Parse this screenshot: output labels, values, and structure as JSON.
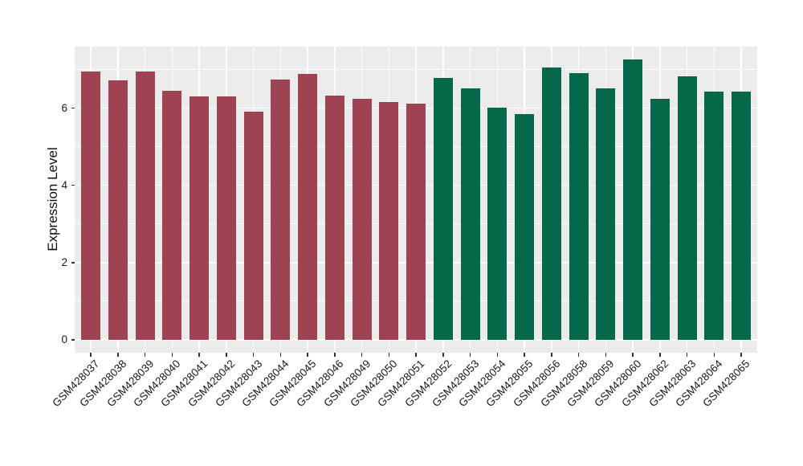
{
  "chart_data": {
    "type": "bar",
    "title": "",
    "xlabel": "",
    "ylabel": "Expression Level",
    "legend": "none",
    "grid": true,
    "yticks": [
      0,
      2,
      4,
      6
    ],
    "minor_yticks": [
      1,
      3,
      5,
      7
    ],
    "ylim": [
      -0.33,
      7.6
    ],
    "categories": [
      "GSM428037",
      "GSM428038",
      "GSM428039",
      "GSM428040",
      "GSM428041",
      "GSM428042",
      "GSM428043",
      "GSM428044",
      "GSM428045",
      "GSM428046",
      "GSM428049",
      "GSM428050",
      "GSM428051",
      "GSM428052",
      "GSM428053",
      "GSM428054",
      "GSM428055",
      "GSM428056",
      "GSM428058",
      "GSM428059",
      "GSM428060",
      "GSM428062",
      "GSM428063",
      "GSM428064",
      "GSM428065"
    ],
    "values": [
      6.95,
      6.72,
      6.95,
      6.44,
      6.3,
      6.3,
      5.91,
      6.74,
      6.88,
      6.32,
      6.23,
      6.16,
      6.12,
      6.77,
      6.51,
      6.01,
      5.84,
      7.05,
      6.9,
      6.51,
      7.25,
      6.24,
      6.82,
      6.43,
      6.42
    ],
    "bar_colors": [
      "#9E4352",
      "#9E4352",
      "#9E4352",
      "#9E4352",
      "#9E4352",
      "#9E4352",
      "#9E4352",
      "#9E4352",
      "#9E4352",
      "#9E4352",
      "#9E4352",
      "#9E4352",
      "#9E4352",
      "#06684B",
      "#06684B",
      "#06684B",
      "#06684B",
      "#06684B",
      "#06684B",
      "#06684B",
      "#06684B",
      "#06684B",
      "#06684B",
      "#06684B",
      "#06684B"
    ],
    "color_groups": [
      {
        "color": "#9E4352",
        "first": "GSM428037",
        "last": "GSM428051"
      },
      {
        "color": "#06684B",
        "first": "GSM428052",
        "last": "GSM428065"
      }
    ],
    "theme": {
      "panel_background": "#EBEBEB",
      "grid_color": "#FFFFFF",
      "axis_text_color": "#1A1A1A",
      "tick_color": "#333333",
      "page_background": "#FFFFFF"
    }
  }
}
